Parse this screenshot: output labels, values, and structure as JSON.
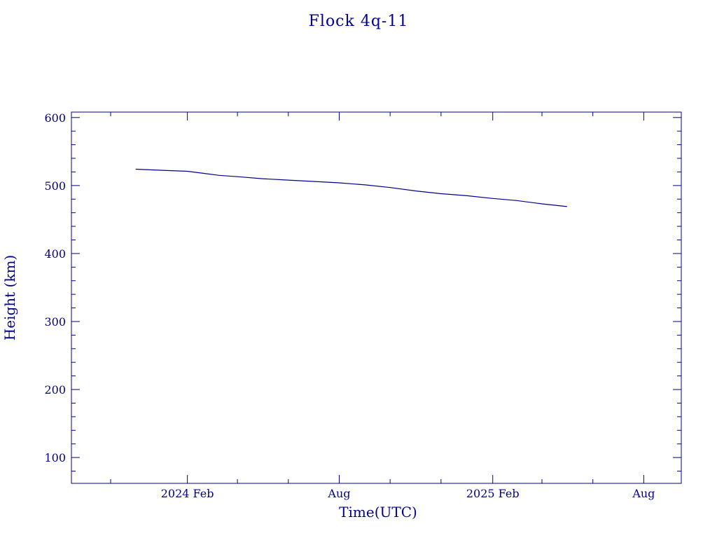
{
  "colors": {
    "ink": "#00008b",
    "background": "#ffffff"
  },
  "chart_data": {
    "type": "line",
    "title": "Flock 4q-11",
    "xlabel": "Time(UTC)",
    "ylabel": "Height (km)",
    "xlim": [
      "2023-09-15",
      "2025-09-15"
    ],
    "ylim": [
      62,
      608
    ],
    "x_ticks": [
      {
        "date": "2024-02-01",
        "label": "2024 Feb"
      },
      {
        "date": "2024-08-01",
        "label": "Aug"
      },
      {
        "date": "2025-02-01",
        "label": "2025 Feb"
      },
      {
        "date": "2025-08-01",
        "label": "Aug"
      }
    ],
    "x_minor_ticks": [
      "2023-11-01",
      "2024-04-01",
      "2024-06-01",
      "2024-10-01",
      "2024-12-01",
      "2025-04-01",
      "2025-06-01"
    ],
    "y_ticks": [
      100,
      200,
      300,
      400,
      500,
      600
    ],
    "y_minor_step": 20,
    "grid": false,
    "legend": "none",
    "series": [
      {
        "points": [
          {
            "x": "2023-12-01",
            "y": 524
          },
          {
            "x": "2023-12-20",
            "y": 523
          },
          {
            "x": "2024-01-10",
            "y": 522
          },
          {
            "x": "2024-02-01",
            "y": 521
          },
          {
            "x": "2024-02-20",
            "y": 518
          },
          {
            "x": "2024-03-10",
            "y": 515
          },
          {
            "x": "2024-04-01",
            "y": 513
          },
          {
            "x": "2024-05-01",
            "y": 510
          },
          {
            "x": "2024-06-01",
            "y": 508
          },
          {
            "x": "2024-07-01",
            "y": 506
          },
          {
            "x": "2024-08-01",
            "y": 504
          },
          {
            "x": "2024-09-01",
            "y": 501
          },
          {
            "x": "2024-10-01",
            "y": 497
          },
          {
            "x": "2024-11-01",
            "y": 492
          },
          {
            "x": "2024-12-01",
            "y": 488
          },
          {
            "x": "2025-01-01",
            "y": 485
          },
          {
            "x": "2025-02-01",
            "y": 481
          },
          {
            "x": "2025-03-01",
            "y": 478
          },
          {
            "x": "2025-04-01",
            "y": 473
          },
          {
            "x": "2025-05-01",
            "y": 469
          }
        ]
      }
    ]
  }
}
